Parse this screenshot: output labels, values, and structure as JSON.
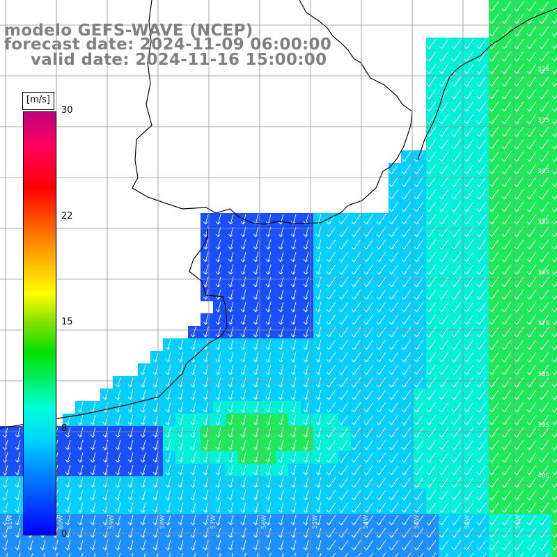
{
  "title": {
    "line1": "modelo GEFS-WAVE (NCEP)",
    "line2": "forecast date: 2024-11-09 06:00:00",
    "line3": "valid date: 2024-11-16 15:00:00"
  },
  "legend": {
    "units": "[m/s]",
    "ticks": [
      "30",
      "22",
      "15",
      "8",
      "0"
    ],
    "colors": [
      "#0000ff",
      "#0080ff",
      "#00d0ff",
      "#00ffd8",
      "#00e000",
      "#80e000",
      "#ffff00",
      "#ff8000",
      "#ff0000",
      "#ff0060",
      "#c0007a"
    ]
  },
  "lat_labels": [
    "32S",
    "33S",
    "34S",
    "35S",
    "36S",
    "37S",
    "38S",
    "39S",
    "40S"
  ],
  "lon_labels": [
    "61W",
    "60W",
    "59W",
    "58W",
    "57W",
    "56W",
    "55W",
    "54W",
    "53W",
    "52W",
    "51W",
    "50W"
  ],
  "colors": {
    "land": "#ffffff",
    "coast": "#000000",
    "grid": "#909090",
    "arrows": "#ffffff"
  }
}
